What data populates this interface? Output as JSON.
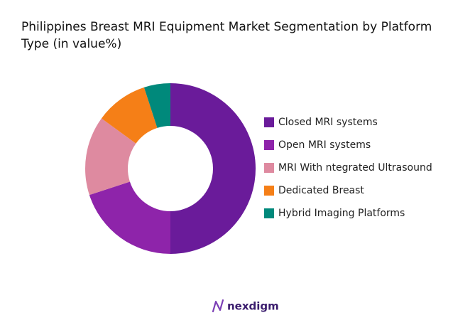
{
  "chart_data": {
    "type": "donut",
    "title": "Philippines Breast MRI Equipment Market Segmentation by Platform Type (in value%)",
    "categories": [
      "Closed MRI systems",
      "Open MRI systems",
      "MRI With ntegrated Ultrasound",
      "Dedicated Breast",
      "Hybrid Imaging Platforms"
    ],
    "values": [
      50,
      20,
      15,
      10,
      5
    ],
    "colors": [
      "#6a1b9a",
      "#8e24aa",
      "#de8aa0",
      "#f57f17",
      "#00897b"
    ],
    "legend": "right"
  },
  "footer": {
    "logo_text": "nexdigm"
  }
}
